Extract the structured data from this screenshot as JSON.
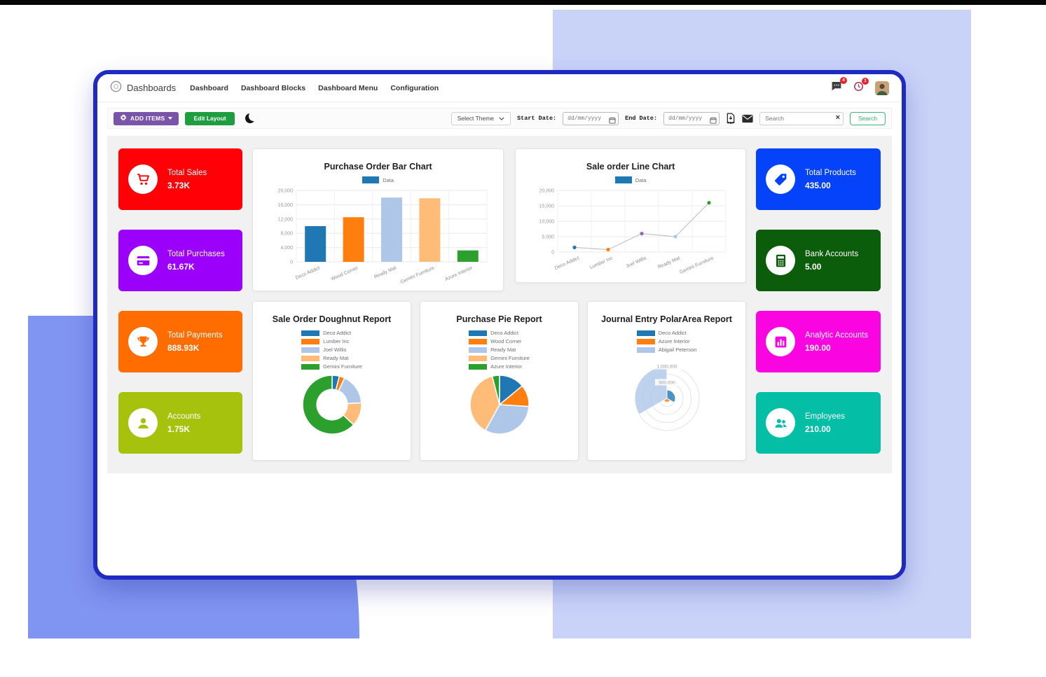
{
  "navbar": {
    "brand": "Dashboards",
    "menu": [
      "Dashboard",
      "Dashboard Blocks",
      "Dashboard Menu",
      "Configuration"
    ],
    "message_badge": "4",
    "activity_badge": "1"
  },
  "toolbar": {
    "add_items": "ADD ITEMS",
    "edit_layout": "Edit Layout",
    "select_theme": "Select Theme",
    "start_date_label": "Start Date:",
    "end_date_label": "End Date:",
    "date_placeholder": "dd/mm/yyyy",
    "pdf_label": "PDF",
    "search_placeholder": "Search",
    "clear_glyph": "×",
    "search_button": "Search"
  },
  "kpi_left": [
    {
      "label": "Total Sales",
      "value": "3.73K",
      "color": "#fe0006",
      "icon": "cart-icon"
    },
    {
      "label": "Total Purchases",
      "value": "61.67K",
      "color": "#9b00fb",
      "icon": "credit-card-icon"
    },
    {
      "label": "Total Payments",
      "value": "888.93K",
      "color": "#ff6d01",
      "icon": "trophy-icon"
    },
    {
      "label": "Accounts",
      "value": "1.75K",
      "color": "#a6c20d",
      "icon": "user-icon"
    }
  ],
  "kpi_right": [
    {
      "label": "Total Products",
      "value": "435.00",
      "color": "#0543fb",
      "icon": "tag-icon"
    },
    {
      "label": "Bank Accounts",
      "value": "5.00",
      "color": "#0b5d0b",
      "icon": "calculator-icon"
    },
    {
      "label": "Analytic Accounts",
      "value": "190.00",
      "color": "#fb04e2",
      "icon": "analytics-icon"
    },
    {
      "label": "Employees",
      "value": "210.00",
      "color": "#04bfa5",
      "icon": "employees-icon"
    }
  ],
  "chart_data": [
    {
      "type": "bar",
      "title": "Purchase Order Bar Chart",
      "legend": [
        "Data"
      ],
      "legend_color": "#1f77b4",
      "categories": [
        "Deco Addict",
        "Wood Corner",
        "Ready Mat",
        "Gemini Furniture",
        "Azure Interior"
      ],
      "values": [
        10000,
        12500,
        18000,
        17800,
        3200
      ],
      "colors": [
        "#1f77b4",
        "#ff7f0e",
        "#aec7e8",
        "#ffbb78",
        "#2ca02c"
      ],
      "ylim": [
        0,
        20000
      ],
      "yticks": [
        0,
        4000,
        8000,
        12000,
        16000,
        20000
      ]
    },
    {
      "type": "line",
      "title": "Sale order Line Chart",
      "legend": [
        "Data"
      ],
      "legend_color": "#1f77b4",
      "categories": [
        "Deco Addict",
        "Lumber Inc",
        "Joel Willis",
        "Ready Mat",
        "Gemini Furniture"
      ],
      "values": [
        1500,
        800,
        6000,
        5000,
        16000
      ],
      "point_colors": [
        "#1f77b4",
        "#ff7f0e",
        "#9467bd",
        "#aec7e8",
        "#2ca02c"
      ],
      "line_color": "#c4c4c4",
      "ylim": [
        0,
        20000
      ],
      "yticks": [
        0,
        5000,
        10000,
        15000,
        20000
      ]
    },
    {
      "type": "doughnut",
      "title": "Sale Order Doughnut Report",
      "categories": [
        "Deco Addict",
        "Lumber Inc",
        "Joel Willis",
        "Ready Mat",
        "Gemini Furniture"
      ],
      "values": [
        4,
        3,
        17,
        13,
        63
      ],
      "colors": [
        "#1f77b4",
        "#ff7f0e",
        "#aec7e8",
        "#ffbb78",
        "#2ca02c"
      ]
    },
    {
      "type": "pie",
      "title": "Purchase Pie Report",
      "categories": [
        "Deco Addict",
        "Wood Corner",
        "Ready Mat",
        "Gemini Furniture",
        "Azure Interior"
      ],
      "values": [
        14,
        12,
        32,
        38,
        4
      ],
      "colors": [
        "#1f77b4",
        "#ff7f0e",
        "#aec7e8",
        "#ffbb78",
        "#2ca02c"
      ]
    },
    {
      "type": "polarArea",
      "title": "Journal Entry PolarArea Report",
      "categories": [
        "Deco Addict",
        "Azure Interior",
        "Abigail Peterson"
      ],
      "values": [
        260000,
        120000,
        1000000
      ],
      "colors": [
        "#1f77b4",
        "#ff7f0e",
        "#aec7e8"
      ],
      "rticks": [
        "500,000",
        "1,000,000"
      ],
      "rmax": 1000000
    }
  ]
}
